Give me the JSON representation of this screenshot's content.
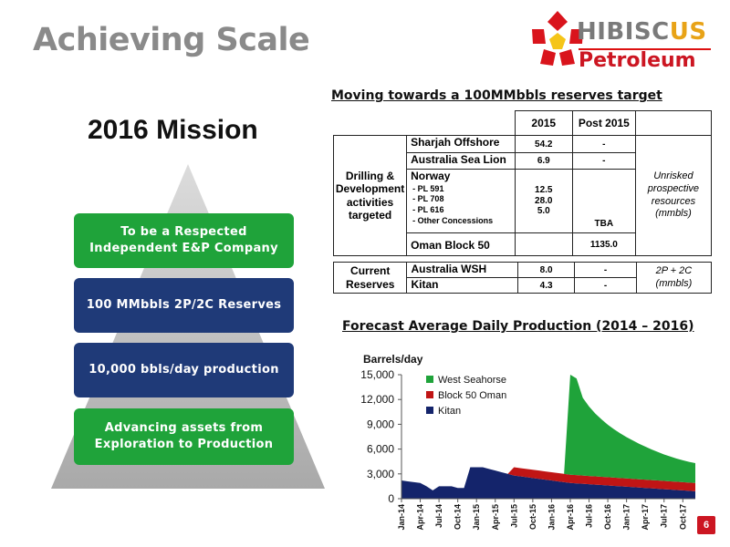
{
  "slide": {
    "title": "Achieving Scale",
    "page_number": "6"
  },
  "logo": {
    "name_part1": "HIBISC",
    "name_part2": "US",
    "sub": "Petroleum"
  },
  "mission": {
    "title": "2016 Mission",
    "items": [
      {
        "label": "To be a Respected Independent E&P Company",
        "color": "#1fa33a"
      },
      {
        "label": "100 MMbbls 2P/2C Reserves",
        "color": "#1f3a78"
      },
      {
        "label": "10,000 bbls/day production",
        "color": "#1f3a78"
      },
      {
        "label": "Advancing assets from Exploration to Production",
        "color": "#1fa33a"
      }
    ]
  },
  "reserves": {
    "title": "Moving towards a 100MMbbls reserves target",
    "headers": [
      "2015",
      "Post 2015"
    ],
    "drilling": {
      "group": "Drilling & Development activities targeted",
      "sharjah": {
        "name": "Sharjah Offshore",
        "v2015": "54.2",
        "post": "-"
      },
      "aus_sea_lion": {
        "name": "Australia Sea Lion",
        "v2015": "6.9",
        "post": "-"
      },
      "norway": {
        "name": "Norway",
        "sub1": "- PL 591",
        "sub2": "- PL 708",
        "sub3": "- PL 616",
        "sub4": "- Other Concessions",
        "v1": "12.5",
        "v2": "28.0",
        "v3": "5.0",
        "post": "TBA"
      },
      "oman": {
        "name": "Oman Block 50",
        "v2015": "",
        "post": "1135.0"
      },
      "note": "Unrisked prospective resources (mmbls)"
    },
    "current": {
      "group": "Current Reserves",
      "aus_wsh": {
        "name": "Australia WSH",
        "v2015": "8.0",
        "post": "-"
      },
      "kitan": {
        "name": "Kitan",
        "v2015": "4.3",
        "post": "-"
      },
      "note": "2P + 2C (mmbls)"
    }
  },
  "production": {
    "title": "Forecast Average Daily Production (2014 – 2016)"
  },
  "chart_data": {
    "type": "area",
    "ylabel": "Barrels/day",
    "ylim": [
      0,
      15000
    ],
    "yticks": [
      "0",
      "3,000",
      "6,000",
      "9,000",
      "12,000",
      "15,000"
    ],
    "x": [
      "Jan-14",
      "Feb-14",
      "Mar-14",
      "Apr-14",
      "May-14",
      "Jun-14",
      "Jul-14",
      "Aug-14",
      "Sep-14",
      "Oct-14",
      "Nov-14",
      "Dec-14",
      "Jan-15",
      "Feb-15",
      "Mar-15",
      "Apr-15",
      "May-15",
      "Jun-15",
      "Jul-15",
      "Aug-15",
      "Sep-15",
      "Oct-15",
      "Nov-15",
      "Dec-15",
      "Jan-16",
      "Feb-16",
      "Mar-16",
      "Apr-16",
      "May-16",
      "Jun-16",
      "Jul-16",
      "Aug-16",
      "Sep-16",
      "Oct-16",
      "Nov-16",
      "Dec-16",
      "Jan-17",
      "Feb-17",
      "Mar-17",
      "Apr-17",
      "May-17",
      "Jun-17",
      "Jul-17",
      "Aug-17",
      "Sep-17",
      "Oct-17",
      "Nov-17",
      "Dec-17"
    ],
    "xtick_labels": [
      "Jan-14",
      "Apr-14",
      "Jul-14",
      "Oct-14",
      "Jan-15",
      "Apr-15",
      "Jul-15",
      "Oct-15",
      "Jan-16",
      "Apr-16",
      "Jul-16",
      "Oct-16",
      "Jan-17",
      "Apr-17",
      "Jul-17",
      "Oct-17"
    ],
    "series": [
      {
        "name": "Kitan",
        "color": "#14246b",
        "values": [
          2200,
          2100,
          2000,
          1900,
          1500,
          1000,
          1500,
          1500,
          1500,
          1300,
          1300,
          3800,
          3800,
          3800,
          3600,
          3400,
          3200,
          3000,
          2800,
          2700,
          2600,
          2500,
          2400,
          2300,
          2200,
          2100,
          2000,
          1900,
          1850,
          1800,
          1750,
          1700,
          1650,
          1600,
          1550,
          1500,
          1450,
          1400,
          1350,
          1300,
          1250,
          1200,
          1150,
          1100,
          1050,
          1000,
          950,
          900
        ]
      },
      {
        "name": "Block 50 Oman",
        "color": "#c01515",
        "values": [
          0,
          0,
          0,
          0,
          0,
          0,
          0,
          0,
          0,
          0,
          0,
          0,
          0,
          0,
          0,
          0,
          0,
          0,
          1000,
          1000,
          1000,
          1000,
          1000,
          1000,
          1000,
          1000,
          1000,
          1000,
          1000,
          1000,
          1000,
          1000,
          1000,
          1000,
          1000,
          1000,
          1000,
          1000,
          1000,
          1000,
          1000,
          1000,
          1000,
          1000,
          1000,
          1000,
          1000,
          1000
        ]
      },
      {
        "name": "West Seahorse",
        "color": "#1fa33a",
        "values": [
          0,
          0,
          0,
          0,
          0,
          0,
          0,
          0,
          0,
          0,
          0,
          0,
          0,
          0,
          0,
          0,
          0,
          0,
          0,
          0,
          0,
          0,
          0,
          0,
          0,
          0,
          0,
          12100,
          11700,
          9400,
          8400,
          7600,
          6950,
          6350,
          5850,
          5400,
          5000,
          4650,
          4300,
          4000,
          3700,
          3450,
          3200,
          3000,
          2800,
          2650,
          2500,
          2400
        ]
      }
    ],
    "legend_position": "top-left",
    "grid": false
  }
}
